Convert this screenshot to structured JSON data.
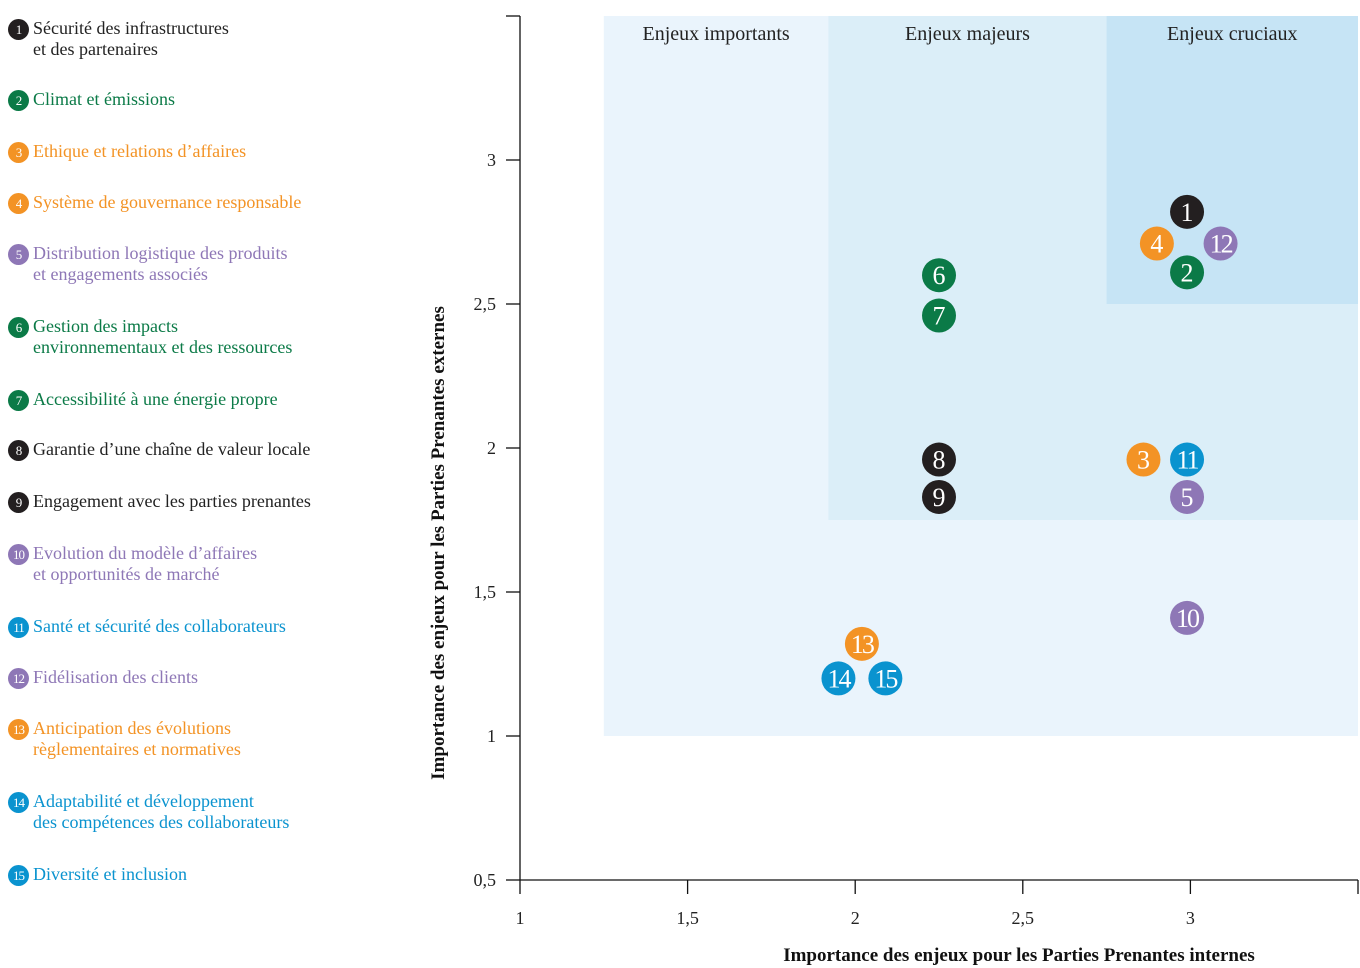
{
  "colors": {
    "black": "#231f20",
    "green": "#0b7a47",
    "orange": "#f39325",
    "purple": "#8e77b6",
    "blue": "#0a93cf",
    "zone_important": "#eaf4fc",
    "zone_major": "#dbeef8",
    "zone_crucial": "#c6e4f5"
  },
  "legend": [
    {
      "num": "1",
      "color": "black",
      "text": "Sécurité des infrastructures\net des partenaires"
    },
    {
      "num": "2",
      "color": "green",
      "text": "Climat et émissions"
    },
    {
      "num": "3",
      "color": "orange",
      "text": "Ethique et relations d’affaires"
    },
    {
      "num": "4",
      "color": "orange",
      "text": "Système de gouvernance responsable"
    },
    {
      "num": "5",
      "color": "purple",
      "text": "Distribution logistique des produits\net engagements associés"
    },
    {
      "num": "6",
      "color": "green",
      "text": "Gestion des impacts\nenvironnementaux et des ressources"
    },
    {
      "num": "7",
      "color": "green",
      "text": "Accessibilité à une énergie propre"
    },
    {
      "num": "8",
      "color": "black",
      "text": "Garantie d’une chaîne de valeur locale"
    },
    {
      "num": "9",
      "color": "black",
      "text": "Engagement avec les parties prenantes"
    },
    {
      "num": "10",
      "color": "purple",
      "text": "Evolution du modèle d’affaires\net opportunités de marché"
    },
    {
      "num": "11",
      "color": "blue",
      "text": "Santé et sécurité des collaborateurs"
    },
    {
      "num": "12",
      "color": "purple",
      "text": "Fidélisation des clients"
    },
    {
      "num": "13",
      "color": "orange",
      "text": "Anticipation des évolutions\nrèglementaires et normatives"
    },
    {
      "num": "14",
      "color": "blue",
      "text": "Adaptabilité et développement\ndes compétences des collaborateurs"
    },
    {
      "num": "15",
      "color": "blue",
      "text": "Diversité et inclusion"
    }
  ],
  "chart_data": {
    "type": "scatter",
    "xlabel": "Importance des enjeux pour les Parties Prenantes internes",
    "ylabel": "Importance des enjeux pour les Parties Prenantes externes",
    "xlim": [
      1,
      3.5
    ],
    "ylim": [
      0.5,
      3.5
    ],
    "x_ticks": [
      1,
      1.5,
      2,
      2.5,
      3
    ],
    "x_tick_labels": [
      "1",
      "1,5",
      "2",
      "2,5",
      "3"
    ],
    "y_ticks": [
      0.5,
      1,
      1.5,
      2,
      2.5,
      3
    ],
    "y_tick_labels": [
      "0,5",
      "1",
      "1,5",
      "2",
      "2,5",
      "3"
    ],
    "zones": [
      {
        "label": "Enjeux importants",
        "color": "zone_important",
        "x": [
          1.25,
          3.5
        ],
        "y": [
          1.0,
          3.5
        ]
      },
      {
        "label": "Enjeux majeurs",
        "color": "zone_major",
        "x": [
          1.92,
          3.5
        ],
        "y": [
          1.75,
          3.5
        ]
      },
      {
        "label": "Enjeux cruciaux",
        "color": "zone_crucial",
        "x": [
          2.75,
          3.5
        ],
        "y": [
          2.5,
          3.5
        ]
      }
    ],
    "points": [
      {
        "label": "1",
        "color": "black",
        "x": 2.99,
        "y": 2.82
      },
      {
        "label": "2",
        "color": "green",
        "x": 2.99,
        "y": 2.61
      },
      {
        "label": "3",
        "color": "orange",
        "x": 2.86,
        "y": 1.96
      },
      {
        "label": "4",
        "color": "orange",
        "x": 2.9,
        "y": 2.71
      },
      {
        "label": "5",
        "color": "purple",
        "x": 2.99,
        "y": 1.83
      },
      {
        "label": "6",
        "color": "green",
        "x": 2.25,
        "y": 2.6
      },
      {
        "label": "7",
        "color": "green",
        "x": 2.25,
        "y": 2.46
      },
      {
        "label": "8",
        "color": "black",
        "x": 2.25,
        "y": 1.96
      },
      {
        "label": "9",
        "color": "black",
        "x": 2.25,
        "y": 1.83
      },
      {
        "label": "10",
        "color": "purple",
        "x": 2.99,
        "y": 1.41
      },
      {
        "label": "11",
        "color": "blue",
        "x": 2.99,
        "y": 1.96
      },
      {
        "label": "12",
        "color": "purple",
        "x": 3.09,
        "y": 2.71
      },
      {
        "label": "13",
        "color": "orange",
        "x": 2.02,
        "y": 1.32
      },
      {
        "label": "14",
        "color": "blue",
        "x": 1.95,
        "y": 1.2
      },
      {
        "label": "15",
        "color": "blue",
        "x": 2.09,
        "y": 1.2
      }
    ]
  }
}
